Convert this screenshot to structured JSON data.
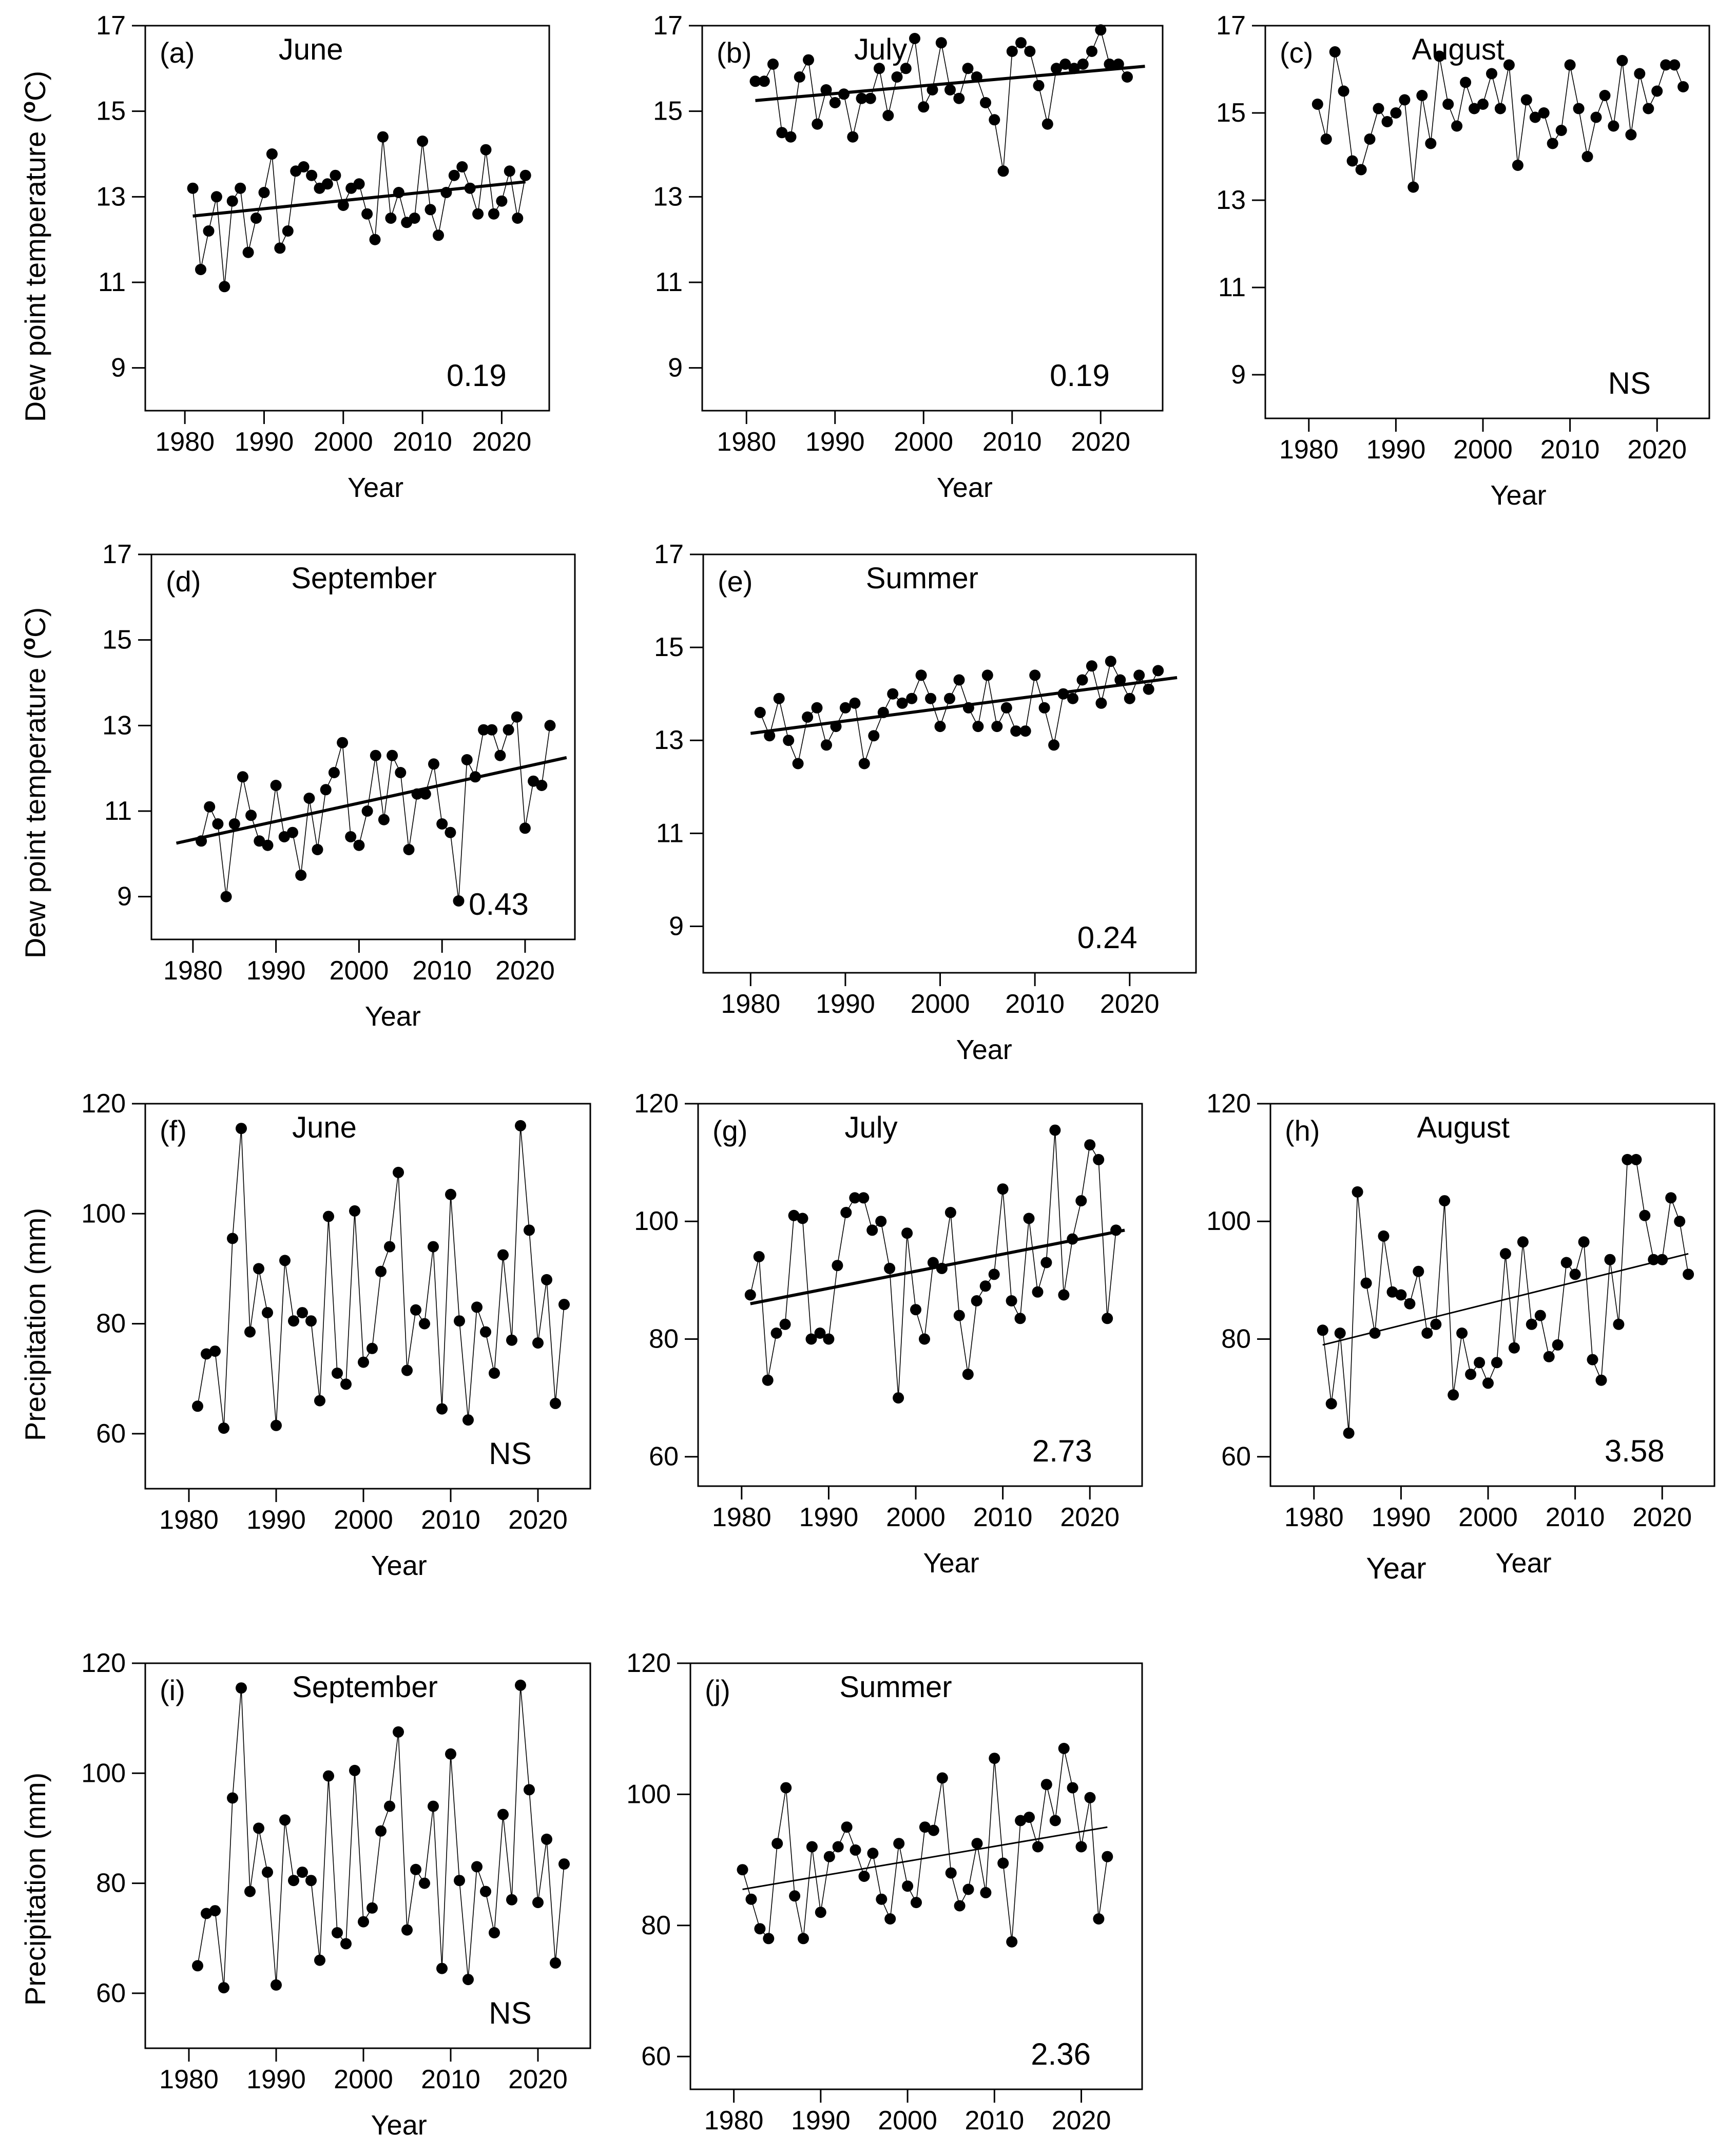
{
  "figure": {
    "ylabels": {
      "dew": [
        "Dew point temperature (",
        "o",
        "C)"
      ],
      "precip": "Precipitation (mm)"
    },
    "extra_label_h": "Year"
  },
  "chart_data": [
    {
      "id": "a",
      "type": "line",
      "panel_label": "(a)",
      "title": "June",
      "xlabel": "Year",
      "trend_label": "0.19",
      "x_ticks": [
        1980,
        1990,
        2000,
        2010,
        2020
      ],
      "y_ticks": [
        9,
        11,
        13,
        15,
        17
      ],
      "xlim": [
        1975,
        2026
      ],
      "ylim": [
        8,
        17
      ],
      "series": [
        {
          "x_start": 1981,
          "values": [
            13.2,
            11.3,
            12.2,
            13.0,
            10.9,
            12.9,
            13.2,
            11.7,
            12.5,
            13.1,
            14.0,
            11.8,
            12.2,
            13.6,
            13.7,
            13.5,
            13.2,
            13.3,
            13.5,
            12.8,
            13.2,
            13.3,
            12.6,
            12.0,
            14.4,
            12.5,
            13.1,
            12.4,
            12.5,
            14.3,
            12.7,
            12.1,
            13.1,
            13.5,
            13.7,
            13.2,
            12.6,
            14.1,
            12.6,
            12.9,
            13.6,
            12.5,
            13.5
          ]
        }
      ],
      "trend": {
        "x": [
          1981,
          2023
        ],
        "y": [
          12.55,
          13.35
        ]
      }
    },
    {
      "id": "b",
      "type": "line",
      "panel_label": "(b)",
      "title": "July",
      "xlabel": "Year",
      "trend_label": "0.19",
      "x_ticks": [
        1980,
        1990,
        2000,
        2010,
        2020
      ],
      "y_ticks": [
        9,
        11,
        13,
        15,
        17
      ],
      "xlim": [
        1975,
        2027
      ],
      "ylim": [
        8,
        17
      ],
      "series": [
        {
          "x_start": 1981,
          "values": [
            15.7,
            15.7,
            16.1,
            14.5,
            14.4,
            15.8,
            16.2,
            14.7,
            15.5,
            15.2,
            15.4,
            14.4,
            15.3,
            15.3,
            16.0,
            14.9,
            15.8,
            16.0,
            16.7,
            15.1,
            15.5,
            16.6,
            15.5,
            15.3,
            16.0,
            15.8,
            15.2,
            14.8,
            13.6,
            16.4,
            16.6,
            16.4,
            15.6,
            14.7,
            16.0,
            16.1,
            16.0,
            16.1,
            16.4,
            16.9,
            16.1,
            16.1,
            15.8
          ]
        }
      ],
      "trend": {
        "x": [
          1981,
          2025
        ],
        "y": [
          15.25,
          16.05
        ]
      }
    },
    {
      "id": "c",
      "type": "line",
      "panel_label": "(c)",
      "title": "August",
      "xlabel": "Year",
      "trend_label": "NS",
      "x_ticks": [
        1980,
        1990,
        2000,
        2010,
        2020
      ],
      "y_ticks": [
        9,
        11,
        13,
        15,
        17
      ],
      "xlim": [
        1975,
        2026
      ],
      "ylim": [
        8,
        17
      ],
      "series": [
        {
          "x_start": 1981,
          "values": [
            15.2,
            14.4,
            16.4,
            15.5,
            13.9,
            13.7,
            14.4,
            15.1,
            14.8,
            15.0,
            15.3,
            13.3,
            15.4,
            14.3,
            16.3,
            15.2,
            14.7,
            15.7,
            15.1,
            15.2,
            15.9,
            15.1,
            16.1,
            13.8,
            15.3,
            14.9,
            15.0,
            14.3,
            14.6,
            16.1,
            15.1,
            14.0,
            14.9,
            15.4,
            14.7,
            16.2,
            14.5,
            15.9,
            15.1,
            15.5,
            16.1,
            16.1,
            15.6
          ]
        }
      ],
      "trend": null
    },
    {
      "id": "d",
      "type": "line",
      "panel_label": "(d)",
      "title": "September",
      "xlabel": "Year",
      "trend_label": "0.43",
      "x_ticks": [
        1980,
        1990,
        2000,
        2010,
        2020
      ],
      "y_ticks": [
        9,
        11,
        13,
        15,
        17
      ],
      "xlim": [
        1975,
        2026
      ],
      "ylim": [
        8,
        17
      ],
      "series": [
        {
          "x_start": 1981,
          "values": [
            10.3,
            11.1,
            10.7,
            9.0,
            10.7,
            11.8,
            10.9,
            10.3,
            10.2,
            11.6,
            10.4,
            10.5,
            9.5,
            11.3,
            10.1,
            11.5,
            11.9,
            12.6,
            10.4,
            10.2,
            11.0,
            12.3,
            10.8,
            12.3,
            11.9,
            10.1,
            11.4,
            11.4,
            12.1,
            10.7,
            10.5,
            8.9,
            12.2,
            11.8,
            12.9,
            12.9,
            12.3,
            12.9,
            13.2,
            10.6,
            11.7,
            11.6,
            13.0
          ]
        }
      ],
      "trend": {
        "x": [
          1978,
          2025
        ],
        "y": [
          10.25,
          12.25
        ]
      }
    },
    {
      "id": "e",
      "type": "line",
      "panel_label": "(e)",
      "title": "Summer",
      "xlabel": "Year",
      "trend_label": "0.24",
      "x_ticks": [
        1980,
        1990,
        2000,
        2010,
        2020
      ],
      "y_ticks": [
        9,
        11,
        13,
        15,
        17
      ],
      "xlim": [
        1975,
        2027
      ],
      "ylim": [
        8,
        17
      ],
      "series": [
        {
          "x_start": 1981,
          "values": [
            13.6,
            13.1,
            13.9,
            13.0,
            12.5,
            13.5,
            13.7,
            12.9,
            13.3,
            13.7,
            13.8,
            12.5,
            13.1,
            13.6,
            14.0,
            13.8,
            13.9,
            14.4,
            13.9,
            13.3,
            13.9,
            14.3,
            13.7,
            13.3,
            14.4,
            13.3,
            13.7,
            13.2,
            13.2,
            14.4,
            13.7,
            12.9,
            14.0,
            13.9,
            14.3,
            14.6,
            13.8,
            14.7,
            14.3,
            13.9,
            14.4,
            14.1,
            14.5
          ]
        }
      ],
      "trend": {
        "x": [
          1980,
          2025
        ],
        "y": [
          13.15,
          14.35
        ]
      }
    },
    {
      "id": "f",
      "type": "line",
      "panel_label": "(f)",
      "title": "June",
      "xlabel": "Year",
      "trend_label": "NS",
      "x_ticks": [
        1980,
        1990,
        2000,
        2010,
        2020
      ],
      "y_ticks": [
        60,
        80,
        100,
        120
      ],
      "xlim": [
        1975,
        2026
      ],
      "ylim": [
        50,
        120
      ],
      "series": [
        {
          "x_start": 1981,
          "values": [
            65,
            74.5,
            75,
            61,
            95.5,
            115.5,
            78.5,
            90,
            82,
            61.5,
            91.5,
            80.5,
            82,
            80.5,
            66,
            99.5,
            71,
            69,
            100.5,
            73,
            75.5,
            89.5,
            94,
            107.5,
            71.5,
            82.5,
            80,
            94,
            64.5,
            103.5,
            80.5,
            62.5,
            83,
            78.5,
            71,
            92.5,
            77,
            116,
            97,
            76.5,
            88,
            65.5,
            83.5
          ]
        }
      ],
      "trend": null
    },
    {
      "id": "g",
      "type": "line",
      "panel_label": "(g)",
      "title": "July",
      "xlabel": "Year",
      "trend_label": "2.73",
      "x_ticks": [
        1980,
        1990,
        2000,
        2010,
        2020
      ],
      "y_ticks": [
        60,
        80,
        100,
        120
      ],
      "xlim": [
        1975,
        2026
      ],
      "ylim": [
        55,
        120
      ],
      "series": [
        {
          "x_start": 1981,
          "values": [
            87.5,
            94,
            73,
            81,
            82.5,
            101,
            100.5,
            80,
            81,
            80,
            92.5,
            101.5,
            104,
            104,
            98.5,
            100,
            92,
            70,
            98,
            85,
            80,
            93,
            92,
            101.5,
            84,
            74,
            86.5,
            89,
            91,
            105.5,
            86.5,
            83.5,
            100.5,
            88,
            93,
            115.5,
            87.5,
            97,
            103.5,
            113,
            110.5,
            83.5,
            98.5
          ]
        }
      ],
      "trend": {
        "x": [
          1981,
          2024
        ],
        "y": [
          86,
          98.5
        ]
      }
    },
    {
      "id": "h",
      "type": "line",
      "panel_label": "(h)",
      "title": "August",
      "xlabel": "Year",
      "trend_label": "3.58",
      "x_ticks": [
        1980,
        1990,
        2000,
        2010,
        2020
      ],
      "y_ticks": [
        60,
        80,
        100,
        120
      ],
      "xlim": [
        1975,
        2026
      ],
      "ylim": [
        55,
        120
      ],
      "series": [
        {
          "x_start": 1981,
          "values": [
            81.5,
            69,
            81,
            64,
            105,
            89.5,
            81,
            97.5,
            88,
            87.5,
            86,
            91.5,
            81,
            82.5,
            103.5,
            70.5,
            81,
            74,
            76,
            72.5,
            76,
            94.5,
            78.5,
            96.5,
            82.5,
            84,
            77,
            79,
            93,
            91,
            96.5,
            76.5,
            73,
            93.5,
            82.5,
            110.5,
            110.5,
            101,
            93.5,
            93.5,
            104,
            100,
            91
          ]
        }
      ],
      "trend": {
        "x": [
          1981,
          2023
        ],
        "y": [
          79,
          94.5
        ]
      }
    },
    {
      "id": "i",
      "type": "line",
      "panel_label": "(i)",
      "title": "September",
      "xlabel": "Year",
      "trend_label": "NS",
      "x_ticks": [
        1980,
        1990,
        2000,
        2010,
        2020
      ],
      "y_ticks": [
        60,
        80,
        100,
        120
      ],
      "xlim": [
        1975,
        2026
      ],
      "ylim": [
        50,
        120
      ],
      "series": [
        {
          "x_start": 1981,
          "values": [
            65,
            74.5,
            75,
            61,
            95.5,
            115.5,
            78.5,
            90,
            82,
            61.5,
            91.5,
            80.5,
            82,
            80.5,
            66,
            99.5,
            71,
            69,
            100.5,
            73,
            75.5,
            89.5,
            94,
            107.5,
            71.5,
            82.5,
            80,
            94,
            64.5,
            103.5,
            80.5,
            62.5,
            83,
            78.5,
            71,
            92.5,
            77,
            116,
            97,
            76.5,
            88,
            65.5,
            83.5
          ]
        }
      ],
      "trend": null
    },
    {
      "id": "j",
      "type": "line",
      "panel_label": "(j)",
      "title": "Summer",
      "xlabel": "Year",
      "trend_label": "2.36",
      "x_ticks": [
        1980,
        1990,
        2000,
        2010,
        2020
      ],
      "y_ticks": [
        60,
        80,
        100,
        120
      ],
      "xlim": [
        1975,
        2027
      ],
      "ylim": [
        55,
        120
      ],
      "series": [
        {
          "x_start": 1981,
          "values": [
            88.5,
            84,
            79.5,
            78,
            92.5,
            101,
            84.5,
            78,
            92,
            82,
            90.5,
            92,
            95,
            91.5,
            87.5,
            91,
            84,
            81,
            92.5,
            86,
            83.5,
            95,
            94.5,
            102.5,
            88,
            83,
            85.5,
            92.5,
            85,
            105.5,
            89.5,
            77.5,
            96,
            96.5,
            92,
            101.5,
            96,
            107,
            101,
            92,
            99.5,
            81,
            90.5
          ]
        }
      ],
      "trend": {
        "x": [
          1981,
          2023
        ],
        "y": [
          85.5,
          95
        ]
      }
    }
  ]
}
